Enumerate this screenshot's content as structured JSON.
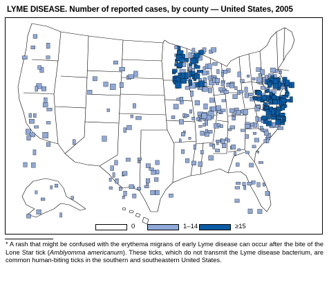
{
  "title": "LYME DISEASE. Number of reported cases, by county — United States, 2005",
  "colors": {
    "none": "#ffffff",
    "low": "#8fa9d8",
    "high": "#0b5ca5",
    "border": "#000000"
  },
  "legend": {
    "items": [
      {
        "label": "0",
        "color": "#ffffff"
      },
      {
        "label": "1–14",
        "color": "#8fa9d8"
      },
      {
        "label": "≥15",
        "color": "#0b5ca5"
      }
    ]
  },
  "footnote": {
    "before": "* A rash that might be confused with the erythema migrans of early Lyme disease can occur after the bite of the Lone Star tick (",
    "species": "Amblyomma americanum",
    "after": "). These ticks, which do not transmit the Lyme disease bacterium, are common human-biting ticks in the southern and southeastern United States."
  }
}
